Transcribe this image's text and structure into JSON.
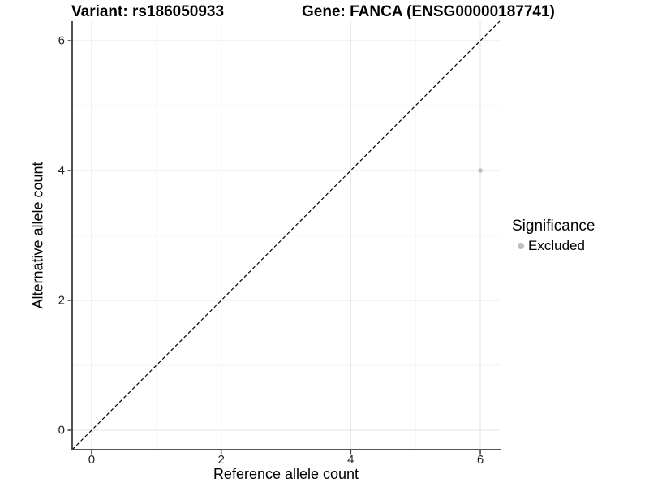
{
  "chart_data": {
    "type": "scatter",
    "title_left": "Variant: rs186050933",
    "title_right": "Gene: FANCA (ENSG00000187741)",
    "xlabel": "Reference allele count",
    "ylabel": "Alternative allele count",
    "xlim": [
      -0.3,
      6.3
    ],
    "ylim": [
      -0.3,
      6.3
    ],
    "x_ticks": [
      0,
      2,
      4,
      6
    ],
    "y_ticks": [
      0,
      2,
      4,
      6
    ],
    "grid": "on",
    "grid_interval": 1,
    "points": [
      {
        "x": 6,
        "y": 4,
        "significance": "Excluded",
        "color": "#bdbdbd"
      }
    ],
    "identity_line": {
      "style": "dashed",
      "color": "#000000",
      "from": [
        -0.3,
        -0.3
      ],
      "to": [
        6.3,
        6.3
      ]
    },
    "legend": {
      "title": "Significance",
      "position": "right",
      "items": [
        {
          "label": "Excluded",
          "color": "#bdbdbd"
        }
      ]
    }
  },
  "colors": {
    "background": "#ffffff",
    "grid_major": "#e5e5e5",
    "grid_minor": "#f0f0f0",
    "axis_line": "#3d3d3d",
    "tick_label": "#262626",
    "point": "#bdbdbd"
  }
}
